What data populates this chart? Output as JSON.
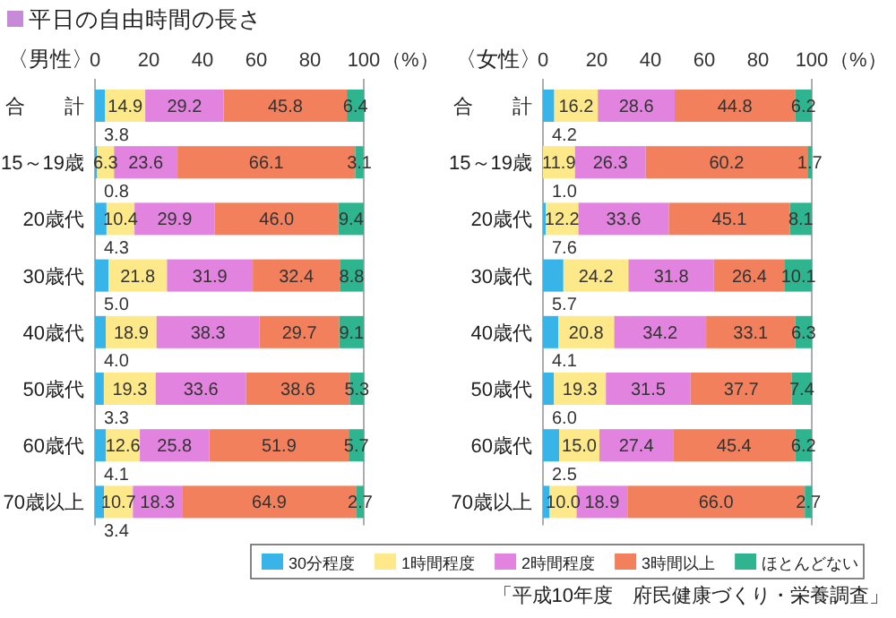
{
  "chart_data": [
    {
      "type": "bar",
      "orientation": "horizontal",
      "stacked": true,
      "title": "平日の自由時間の長さ",
      "subtitle": "〈男性〉",
      "xlabel": "（%）",
      "categories": [
        "合　　計",
        "15～19歳",
        "20歳代",
        "30歳代",
        "40歳代",
        "50歳代",
        "60歳代",
        "70歳以上"
      ],
      "xlim": [
        0,
        100
      ],
      "xticks": [
        0,
        20,
        40,
        60,
        80,
        100
      ],
      "legend": "bottom",
      "series": [
        {
          "name": "30分程度",
          "color": "#38b4e8",
          "values": [
            3.8,
            0.8,
            4.3,
            5.0,
            4.0,
            3.3,
            4.1,
            3.4
          ],
          "value_labels": [
            "3.8",
            "0.8",
            "4.3",
            "5.0",
            "4.0",
            "3.3",
            "4.1",
            "3.4"
          ]
        },
        {
          "name": "1時間程度",
          "color": "#fde98a",
          "values": [
            14.9,
            6.3,
            10.4,
            21.8,
            18.9,
            19.3,
            12.6,
            10.7
          ],
          "value_labels": [
            "14.9",
            "6.3",
            "10.4",
            "21.8",
            "18.9",
            "19.3",
            "12.6",
            "10.7"
          ]
        },
        {
          "name": "2時間程度",
          "color": "#e283e0",
          "values": [
            29.2,
            23.6,
            29.9,
            31.9,
            38.3,
            33.6,
            25.8,
            18.3
          ],
          "value_labels": [
            "29.2",
            "23.6",
            "29.9",
            "31.9",
            "38.3",
            "33.6",
            "25.8",
            "18.3"
          ]
        },
        {
          "name": "3時間以上",
          "color": "#f2805c",
          "values": [
            45.8,
            66.1,
            46.0,
            32.4,
            29.7,
            38.6,
            51.9,
            64.9
          ],
          "value_labels": [
            "45.8",
            "66.1",
            "46.0",
            "32.4",
            "29.7",
            "38.6",
            "51.9",
            "64.9"
          ]
        },
        {
          "name": "ほとんどない",
          "color": "#2eb48e",
          "values": [
            6.4,
            3.1,
            9.4,
            8.8,
            9.1,
            5.3,
            5.7,
            2.7
          ],
          "value_labels": [
            "6.4",
            "3.1",
            "9.4",
            "8.8",
            "9.1",
            "5.3",
            "5.7",
            "2.7"
          ]
        }
      ]
    },
    {
      "type": "bar",
      "orientation": "horizontal",
      "stacked": true,
      "subtitle": "〈女性〉",
      "xlabel": "（%）",
      "categories": [
        "合　　計",
        "15～19歳",
        "20歳代",
        "30歳代",
        "40歳代",
        "50歳代",
        "60歳代",
        "70歳以上"
      ],
      "xlim": [
        0,
        100
      ],
      "xticks": [
        0,
        20,
        40,
        60,
        80,
        100
      ],
      "annotations": [
        "「平成10年度　府民健康づくり・栄養調査」"
      ],
      "series": [
        {
          "color": "#38b4e8",
          "values": [
            4.2,
            0,
            1.0,
            7.6,
            5.7,
            4.1,
            6.0,
            2.5
          ],
          "value_labels": [
            "4.2",
            null,
            "1.0",
            "7.6",
            "5.7",
            "4.1",
            "6.0",
            "2.5"
          ]
        },
        {
          "color": "#fde98a",
          "values": [
            16.2,
            11.9,
            12.2,
            24.2,
            20.8,
            19.3,
            15.0,
            10.0
          ],
          "value_labels": [
            "16.2",
            "11.9",
            "12.2",
            "24.2",
            "20.8",
            "19.3",
            "15.0",
            "10.0"
          ]
        },
        {
          "color": "#e283e0",
          "values": [
            28.6,
            26.3,
            33.6,
            31.8,
            34.2,
            31.5,
            27.4,
            18.9
          ],
          "value_labels": [
            "28.6",
            "26.3",
            "33.6",
            "31.8",
            "34.2",
            "31.5",
            "27.4",
            "18.9"
          ]
        },
        {
          "color": "#f2805c",
          "values": [
            44.8,
            60.2,
            45.1,
            26.4,
            33.1,
            37.7,
            45.4,
            66.0
          ],
          "value_labels": [
            "44.8",
            "60.2",
            "45.1",
            "26.4",
            "33.1",
            "37.7",
            "45.4",
            "66.0"
          ]
        },
        {
          "color": "#2eb48e",
          "values": [
            6.2,
            1.7,
            8.1,
            10.1,
            6.3,
            7.4,
            6.2,
            2.7
          ],
          "value_labels": [
            "6.2",
            "1.7",
            "8.1",
            "10.1",
            "6.3",
            "7.4",
            "6.2",
            "2.7"
          ]
        }
      ]
    }
  ]
}
